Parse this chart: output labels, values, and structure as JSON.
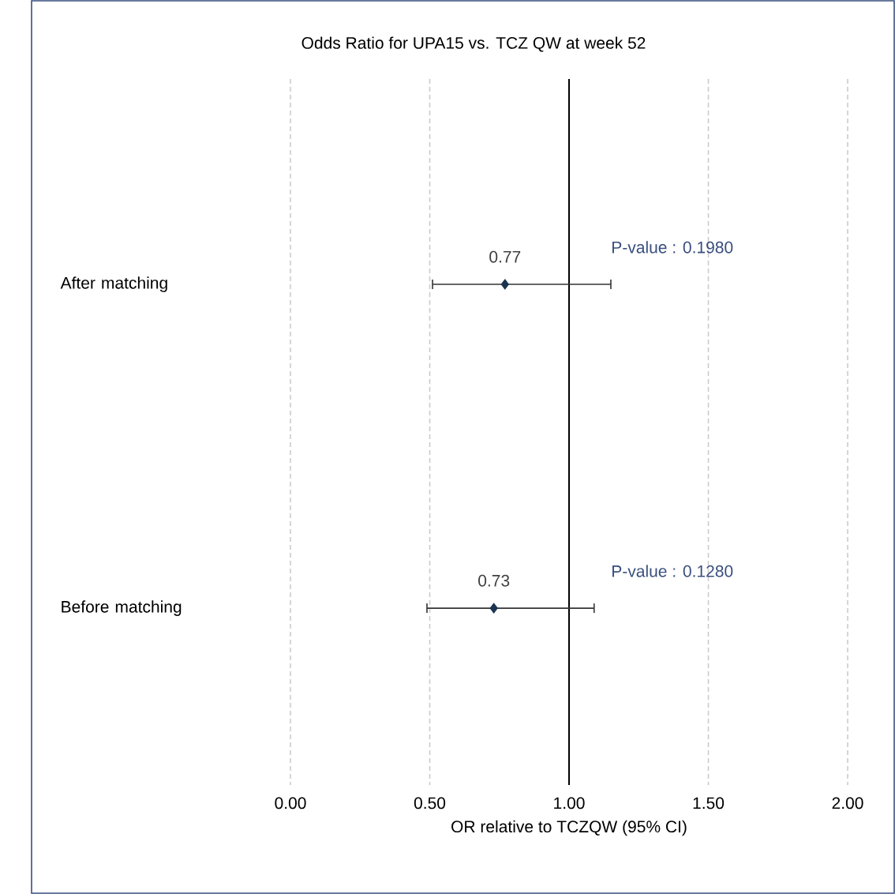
{
  "chart_data": {
    "type": "scatter",
    "orientation": "horizontal",
    "title": "Odds Ratio for UPA15 vs. TCZ QW at week 52",
    "xlabel": "OR relative to TCZQW (95% CI)",
    "categories": [
      "After matching",
      "Before matching"
    ],
    "values": [
      0.77,
      0.73
    ],
    "errors": [
      [
        0.51,
        1.15
      ],
      [
        0.49,
        1.09
      ]
    ],
    "value_labels": [
      "0.77",
      "0.73"
    ],
    "color": "#1a3350",
    "marker": "diamond",
    "xlim": [
      0,
      2
    ],
    "xticks": [
      {
        "value": 0,
        "label": "0.00"
      },
      {
        "value": 0.5,
        "label": "0.50"
      },
      {
        "value": 1,
        "label": "1.00"
      },
      {
        "value": 1.5,
        "label": "1.50"
      },
      {
        "value": 2,
        "label": "2.00"
      }
    ],
    "grid": "x",
    "ref_lines": [
      {
        "axis": "x",
        "value": 1,
        "color": "#000000"
      }
    ],
    "annotations": [
      "P-value : 0.1980",
      "P-value : 0.1280"
    ]
  }
}
